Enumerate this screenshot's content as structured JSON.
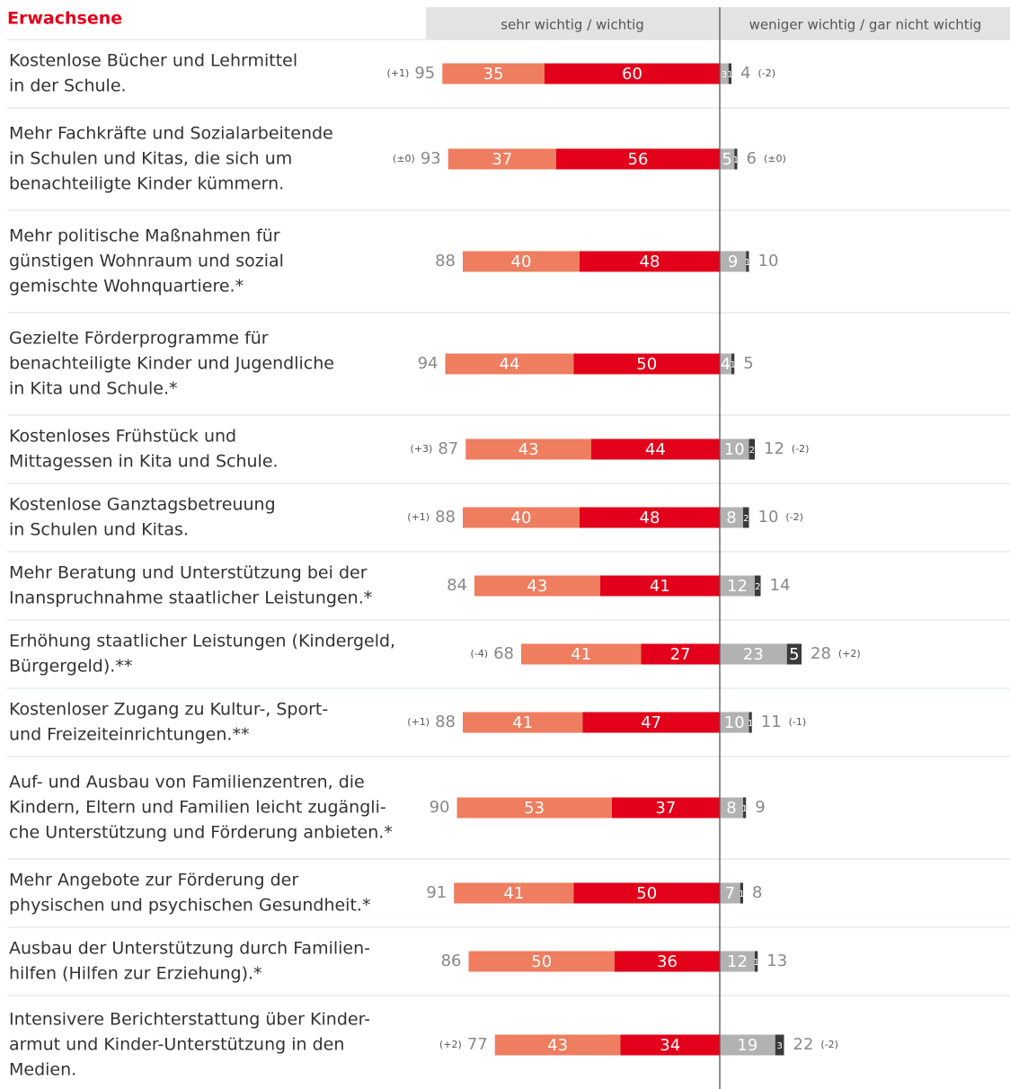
{
  "chart_data": {
    "type": "bar",
    "title": "Erwachsene",
    "header_left": "sehr wichtig / wichtig",
    "header_right": "weniger wichtig / gar nicht wichtig",
    "categories": [
      [
        "Kostenlose Bücher und Lehrmittel",
        "in der Schule."
      ],
      [
        "Mehr Fachkräfte und Sozialarbeitende",
        "in Schulen und Kitas, die sich um",
        "benachteiligte Kinder kümmern."
      ],
      [
        "Mehr politische Maßnahmen für",
        "günstigen Wohnraum und sozial",
        "gemischte Wohnquartiere.*"
      ],
      [
        "Gezielte Förderprogramme für",
        "benachteiligte Kinder und Jugendliche",
        "in Kita und Schule.*"
      ],
      [
        "Kostenloses Frühstück und",
        "Mittagessen in Kita und Schule."
      ],
      [
        "Kostenlose Ganztagsbetreuung",
        "in Schulen und Kitas."
      ],
      [
        "Mehr Beratung und Unterstützung bei der",
        "Inanspruchnahme staatlicher Leistungen.*"
      ],
      [
        "Erhöhung staatlicher Leistungen (Kindergeld,",
        "Bürgergeld).**"
      ],
      [
        "Kostenloser Zugang zu Kultur-, Sport-",
        "und Freizeiteinrichtungen.**"
      ],
      [
        "Auf- und Ausbau von Familienzentren, die",
        "Kindern, Eltern und Familien leicht zugängli-",
        "che Unterstützung und Förderung anbieten.*"
      ],
      [
        "Mehr Angebote zur Förderung der",
        "physischen und psychischen Gesundheit.*"
      ],
      [
        "Ausbau der Unterstützung durch Familien-",
        "hilfen (Hilfen zur Erziehung).*"
      ],
      [
        "Intensivere Berichterstattung über Kinder-",
        "armut und Kinder-Unterstützung in den",
        "Medien."
      ]
    ],
    "series": [
      {
        "color": "#e2001a",
        "side": "left",
        "values": [
          60,
          56,
          48,
          50,
          44,
          48,
          41,
          27,
          47,
          37,
          50,
          36,
          34
        ]
      },
      {
        "color": "#ef7d5f",
        "side": "left",
        "values": [
          35,
          37,
          40,
          44,
          43,
          40,
          43,
          41,
          41,
          53,
          41,
          50,
          43
        ]
      },
      {
        "color": "#b2b2b2",
        "side": "right",
        "values": [
          3,
          5,
          9,
          4,
          10,
          8,
          12,
          23,
          10,
          8,
          7,
          12,
          19
        ]
      },
      {
        "color": "#3a3a3a",
        "side": "right",
        "values": [
          1,
          1,
          1,
          1,
          2,
          2,
          2,
          5,
          1,
          1,
          1,
          1,
          3
        ]
      }
    ],
    "totals_left": [
      95,
      93,
      88,
      94,
      87,
      88,
      84,
      68,
      88,
      90,
      91,
      86,
      77
    ],
    "changes_left": [
      "(+1)",
      "(±0)",
      null,
      null,
      "(+3)",
      "(+1)",
      null,
      "(-4)",
      "(+1)",
      null,
      null,
      null,
      "(+2)"
    ],
    "totals_right": [
      4,
      6,
      10,
      5,
      12,
      10,
      14,
      28,
      11,
      9,
      8,
      13,
      22
    ],
    "changes_right": [
      "(-2)",
      "(±0)",
      null,
      null,
      "(-2)",
      "(-2)",
      null,
      "(+2)",
      "(-1)",
      null,
      null,
      null,
      "(-2)"
    ]
  }
}
